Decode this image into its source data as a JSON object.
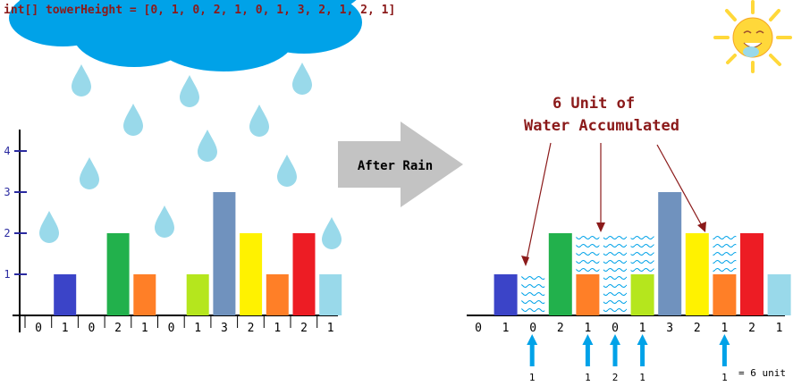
{
  "code_line": "int[] towerHeight = [0, 1, 0, 2, 1, 0, 1, 3, 2, 1, 2, 1]",
  "arrow_label": "After Rain",
  "annotation": {
    "line1": "6 Unit of",
    "line2": "Water Accumulated"
  },
  "heights": [
    0,
    1,
    0,
    2,
    1,
    0,
    1,
    3,
    2,
    1,
    2,
    1
  ],
  "water": [
    0,
    0,
    1,
    0,
    1,
    2,
    1,
    0,
    0,
    1,
    0,
    0
  ],
  "y_ticks": [
    "1",
    "2",
    "3",
    "4"
  ],
  "x_tick_labels": [
    "0",
    "1",
    "0",
    "2",
    "1",
    "0",
    "1",
    "3",
    "2",
    "1",
    "2",
    "1"
  ],
  "right_axis_end_label": ",",
  "total_label": "= 6 unit",
  "colors": {
    "bars": [
      "#ffffff",
      "#3b44c8",
      "#ffffff",
      "#22b14c",
      "#ff7f27",
      "#ffffff",
      "#b5e61d",
      "#7092be",
      "#fff200",
      "#ff7f27",
      "#ed1c24",
      "#99d9ea"
    ],
    "water": "#00a2e8",
    "arrow": "#00a2e8",
    "cloud": "#00a2e8",
    "drop": "#99d9ea",
    "sun": "#ffd83a",
    "big_arrow": "#c3c3c3",
    "axis": "#000000",
    "annotation": "#8b1a1a"
  }
}
